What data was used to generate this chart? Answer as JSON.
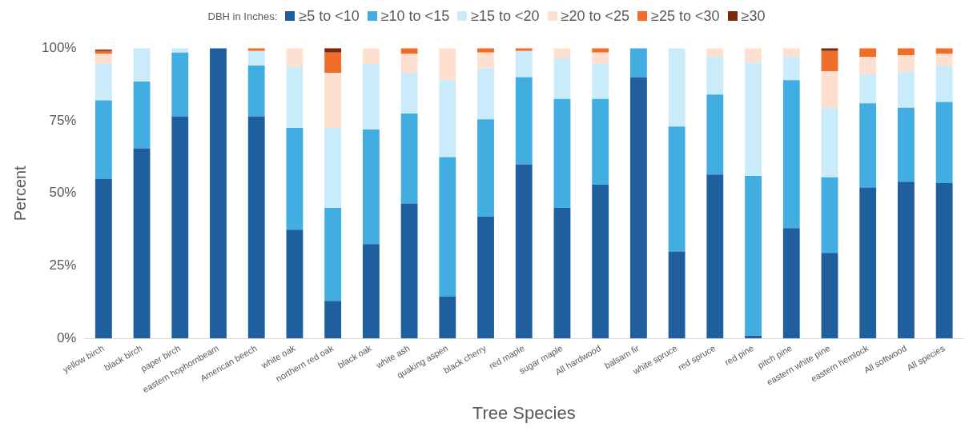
{
  "chart_data": {
    "type": "bar",
    "stacked": true,
    "xlabel": "Tree Species",
    "ylabel": "Percent",
    "legend_title": "DBH in Inches:",
    "legend": "top",
    "grid": false,
    "categories": [
      "yellow birch",
      "black birch",
      "paper birch",
      "eastern hophornbeam",
      "American beech",
      "white oak",
      "northern red oak",
      "black oak",
      "white ash",
      "quaking aspen",
      "black cherry",
      "red maple",
      "sugar maple",
      "All hardwood",
      "balsam fir",
      "white spruce",
      "red spruce",
      "red pine",
      "pitch pine",
      "eastern white pine",
      "eastern hemlock",
      "All softwood",
      "All species"
    ],
    "ylim": [
      0,
      100
    ],
    "yticks": [
      {
        "value": 0,
        "label": "0%"
      },
      {
        "value": 25,
        "label": "25%"
      },
      {
        "value": 50,
        "label": "50%"
      },
      {
        "value": 75,
        "label": "75%"
      },
      {
        "value": 100,
        "label": "100%"
      }
    ],
    "series": [
      {
        "name": "≥5 to <10",
        "color": "#1f5f9e",
        "values": [
          55,
          65.5,
          76.5,
          100,
          76.5,
          37.5,
          13,
          32.5,
          46.5,
          14.5,
          42,
          60,
          45,
          53,
          90,
          30,
          56.5,
          1,
          38,
          29.5,
          52,
          54,
          53.5
        ]
      },
      {
        "name": "≥10 to <15",
        "color": "#41ade0",
        "values": [
          27,
          23,
          22,
          0,
          17.5,
          35,
          32,
          39.5,
          31,
          48,
          33.5,
          30,
          37.5,
          29.5,
          10,
          43,
          27.5,
          55,
          51,
          26,
          29,
          25.5,
          28
        ]
      },
      {
        "name": "≥15 to <20",
        "color": "#c9ebfa",
        "values": [
          12.5,
          11.5,
          1.5,
          0,
          5,
          21,
          27.5,
          22.5,
          14,
          26.5,
          17.5,
          9,
          14,
          12,
          0,
          27,
          13,
          39,
          8,
          24,
          10,
          12.5,
          12.5
        ]
      },
      {
        "name": "≥20 to <25",
        "color": "#fde0cf",
        "values": [
          3.5,
          0,
          0,
          0,
          0,
          6.5,
          19,
          5.5,
          6.5,
          11,
          5.5,
          0,
          3.5,
          4,
          0,
          0,
          3,
          5,
          3,
          12.5,
          6,
          5.5,
          4
        ]
      },
      {
        "name": "≥25 to <30",
        "color": "#ee6e2a",
        "values": [
          1,
          0,
          0,
          0,
          1,
          0,
          7,
          0,
          2,
          0,
          1.5,
          1,
          0,
          1.5,
          0,
          0,
          0,
          0,
          0,
          7,
          3,
          2.5,
          2
        ]
      },
      {
        "name": "≥30",
        "color": "#7a2a0a",
        "values": [
          0.5,
          0,
          0,
          0,
          0,
          0,
          1.5,
          0,
          0,
          0,
          0,
          0,
          0,
          0,
          0,
          0,
          0,
          0,
          0,
          1,
          0,
          0,
          0
        ]
      }
    ]
  }
}
